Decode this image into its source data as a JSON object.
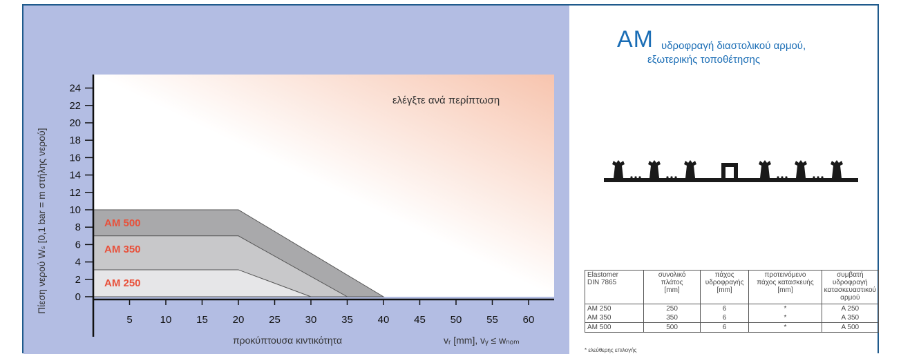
{
  "chart_data": {
    "type": "area",
    "xlabel": "προκύπτουσα κιντικότητα",
    "xlabel_right": "vᵣ [mm],   vᵧ ≤ wₙₒₘ",
    "ylabel": "Πίεση νερού Wₛ     [0,1 bar = m στήλης νερού]",
    "annotation": "ελέγξτε ανά περίπτωση",
    "xlim": [
      0,
      63
    ],
    "ylim": [
      0,
      25
    ],
    "x_ticks": [
      5,
      10,
      15,
      20,
      25,
      30,
      35,
      40,
      45,
      50,
      55,
      60
    ],
    "y_ticks": [
      0,
      2,
      4,
      6,
      8,
      10,
      12,
      14,
      16,
      18,
      20,
      22,
      24
    ],
    "series": [
      {
        "name": "AM 500",
        "points": [
          [
            0,
            10
          ],
          [
            20,
            10
          ],
          [
            40,
            0
          ]
        ],
        "color": "#a9a9ab"
      },
      {
        "name": "AM 350",
        "points": [
          [
            0,
            7
          ],
          [
            20,
            7
          ],
          [
            35,
            0
          ]
        ],
        "color": "#c8c8ca"
      },
      {
        "name": "AM 250",
        "points": [
          [
            0,
            3.1
          ],
          [
            20,
            3.1
          ],
          [
            30,
            0
          ]
        ],
        "color": "#e6e6e8"
      }
    ],
    "label_color": "#e8503a"
  },
  "product": {
    "code": "AM",
    "subtitle_line1": "υδροφραγή διαστολικού αρμού,",
    "subtitle_line2": "εξωτερικής τοποθέτησης"
  },
  "table": {
    "headers": [
      "Elastomer\nDIN 7865",
      "συνολικό\nπλάτος\n[mm]",
      "πάχος\nυδροφραγής\n[mm]",
      "προτεινόμενο\nπάχος κατασκευής\n[mm]",
      "συμβατή\nυδροφραγή\nκατασκευαστικού\nαρμού"
    ],
    "rows": [
      [
        "AM 250",
        "250",
        "6",
        "*",
        "A 250"
      ],
      [
        "AM 350",
        "350",
        "6",
        "*",
        "A 350"
      ],
      [
        "AM 500",
        "500",
        "6",
        "*",
        "A 500"
      ]
    ],
    "footnote": "* ελεύθερης επιλογής"
  }
}
